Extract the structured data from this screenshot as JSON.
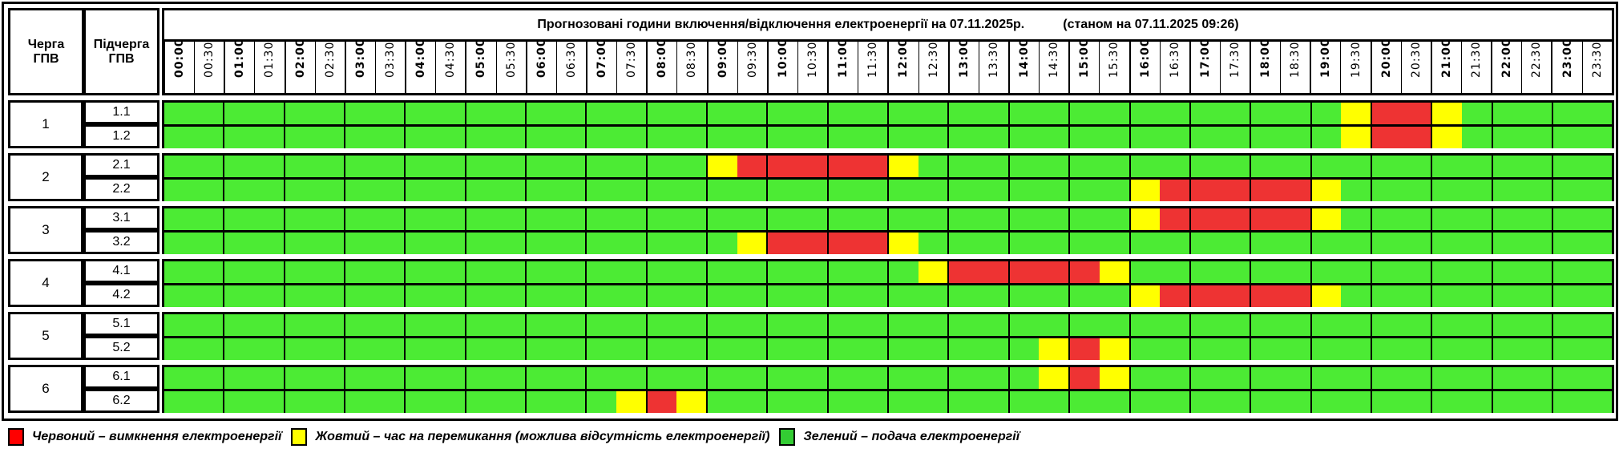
{
  "header": {
    "queue_label": "Черга ГПВ",
    "subqueue_label": "Підчерга ГПВ",
    "title": "Прогнозовані години включення/відключення електроенергії на 07.11.2025р.",
    "status": "(станом на 07.11.2025 09:26)"
  },
  "times": [
    "00:00",
    "00:30",
    "01:00",
    "01:30",
    "02:00",
    "02:30",
    "03:00",
    "03:30",
    "04:00",
    "04:30",
    "05:00",
    "05:30",
    "06:00",
    "06:30",
    "07:00",
    "07:30",
    "08:00",
    "08:30",
    "09:00",
    "09:30",
    "10:00",
    "10:30",
    "11:00",
    "11:30",
    "12:00",
    "12:30",
    "13:00",
    "13:30",
    "14:00",
    "14:30",
    "15:00",
    "15:30",
    "16:00",
    "16:30",
    "17:00",
    "17:30",
    "18:00",
    "18:30",
    "19:00",
    "19:30",
    "20:00",
    "20:30",
    "21:00",
    "21:30",
    "22:00",
    "22:30",
    "23:00",
    "23:30"
  ],
  "colors": {
    "g": "#4CEB34",
    "y": "#FFFF00",
    "r": "#EE3333",
    "legend_red": "#FF0000",
    "legend_yellow": "#FFFF00",
    "legend_green": "#33CC33"
  },
  "groups": [
    {
      "label": "1",
      "rows": [
        {
          "label": "1.1",
          "segments": [
            [
              "g",
              39
            ],
            [
              "y",
              1
            ],
            [
              "r",
              2
            ],
            [
              "y",
              1
            ],
            [
              "g",
              5
            ]
          ]
        },
        {
          "label": "1.2",
          "segments": [
            [
              "g",
              39
            ],
            [
              "y",
              1
            ],
            [
              "r",
              2
            ],
            [
              "y",
              1
            ],
            [
              "g",
              5
            ]
          ]
        }
      ]
    },
    {
      "label": "2",
      "rows": [
        {
          "label": "2.1",
          "segments": [
            [
              "g",
              18
            ],
            [
              "y",
              1
            ],
            [
              "r",
              5
            ],
            [
              "y",
              1
            ],
            [
              "g",
              23
            ]
          ]
        },
        {
          "label": "2.2",
          "segments": [
            [
              "g",
              32
            ],
            [
              "y",
              1
            ],
            [
              "r",
              5
            ],
            [
              "y",
              1
            ],
            [
              "g",
              9
            ]
          ]
        }
      ]
    },
    {
      "label": "3",
      "rows": [
        {
          "label": "3.1",
          "segments": [
            [
              "g",
              32
            ],
            [
              "y",
              1
            ],
            [
              "r",
              5
            ],
            [
              "y",
              1
            ],
            [
              "g",
              9
            ]
          ]
        },
        {
          "label": "3.2",
          "segments": [
            [
              "g",
              19
            ],
            [
              "y",
              1
            ],
            [
              "r",
              4
            ],
            [
              "y",
              1
            ],
            [
              "g",
              23
            ]
          ]
        }
      ]
    },
    {
      "label": "4",
      "rows": [
        {
          "label": "4.1",
          "segments": [
            [
              "g",
              25
            ],
            [
              "y",
              1
            ],
            [
              "r",
              5
            ],
            [
              "y",
              1
            ],
            [
              "g",
              16
            ]
          ]
        },
        {
          "label": "4.2",
          "segments": [
            [
              "g",
              32
            ],
            [
              "y",
              1
            ],
            [
              "r",
              5
            ],
            [
              "y",
              1
            ],
            [
              "g",
              9
            ]
          ]
        }
      ]
    },
    {
      "label": "5",
      "rows": [
        {
          "label": "5.1",
          "segments": [
            [
              "g",
              48
            ]
          ]
        },
        {
          "label": "5.2",
          "segments": [
            [
              "g",
              29
            ],
            [
              "y",
              1
            ],
            [
              "r",
              1
            ],
            [
              "y",
              1
            ],
            [
              "g",
              16
            ]
          ]
        }
      ]
    },
    {
      "label": "6",
      "rows": [
        {
          "label": "6.1",
          "segments": [
            [
              "g",
              29
            ],
            [
              "y",
              1
            ],
            [
              "r",
              1
            ],
            [
              "y",
              1
            ],
            [
              "g",
              16
            ]
          ]
        },
        {
          "label": "6.2",
          "segments": [
            [
              "g",
              15
            ],
            [
              "y",
              1
            ],
            [
              "r",
              1
            ],
            [
              "y",
              1
            ],
            [
              "g",
              30
            ]
          ]
        }
      ]
    }
  ],
  "legend": {
    "red": "Червоний – вимкнення електроенергії",
    "yellow": "Жовтий – час на перемикання (можлива відсутність електроенергії)",
    "green": "Зелений – подача електроенергії"
  }
}
